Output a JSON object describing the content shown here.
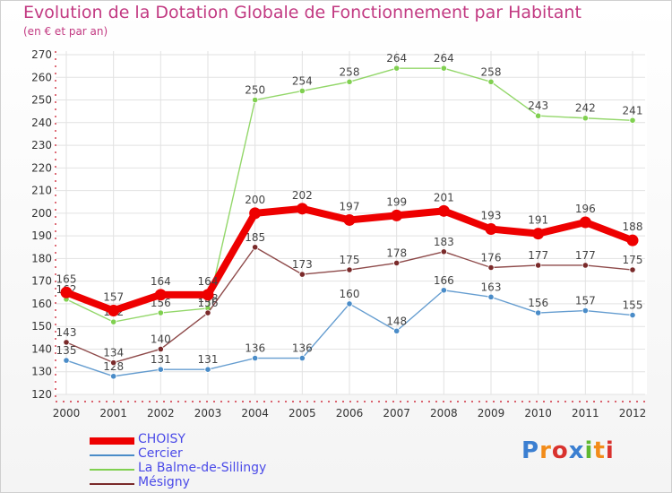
{
  "title": "Evolution de la Dotation Globale de Fonctionnement par Habitant",
  "subtitle": "(en € et par an)",
  "logo": {
    "text": "Proxiti",
    "colors": [
      "#3b7fd1",
      "#f28c1a",
      "#d9322e",
      "#3b7fd1",
      "#5fb830",
      "#f28c1a",
      "#d9322e"
    ]
  },
  "chart_data": {
    "type": "line",
    "x": [
      "2000",
      "2001",
      "2002",
      "2003",
      "2004",
      "2005",
      "2006",
      "2007",
      "2008",
      "2009",
      "2010",
      "2011",
      "2012"
    ],
    "ylim": [
      120,
      270
    ],
    "yticks": [
      120,
      130,
      140,
      150,
      160,
      170,
      180,
      190,
      200,
      210,
      220,
      230,
      240,
      250,
      260,
      270
    ],
    "grid": true,
    "legend_position": "bottom-left",
    "series": [
      {
        "name": "CHOISY",
        "color": "#ee0000",
        "values": [
          165,
          157,
          164,
          164,
          200,
          202,
          197,
          199,
          201,
          193,
          191,
          196,
          188
        ]
      },
      {
        "name": "Cercier",
        "color": "#4a8cc8",
        "values": [
          135,
          128,
          131,
          131,
          136,
          136,
          160,
          148,
          166,
          163,
          156,
          157,
          155
        ]
      },
      {
        "name": "La Balme-de-Sillingy",
        "color": "#80d050",
        "values": [
          162,
          152,
          156,
          158,
          250,
          254,
          258,
          264,
          264,
          258,
          243,
          242,
          241
        ]
      },
      {
        "name": "Mésigny",
        "color": "#7a2a2a",
        "values": [
          143,
          134,
          140,
          156,
          185,
          173,
          175,
          178,
          183,
          176,
          177,
          177,
          175
        ]
      }
    ]
  }
}
